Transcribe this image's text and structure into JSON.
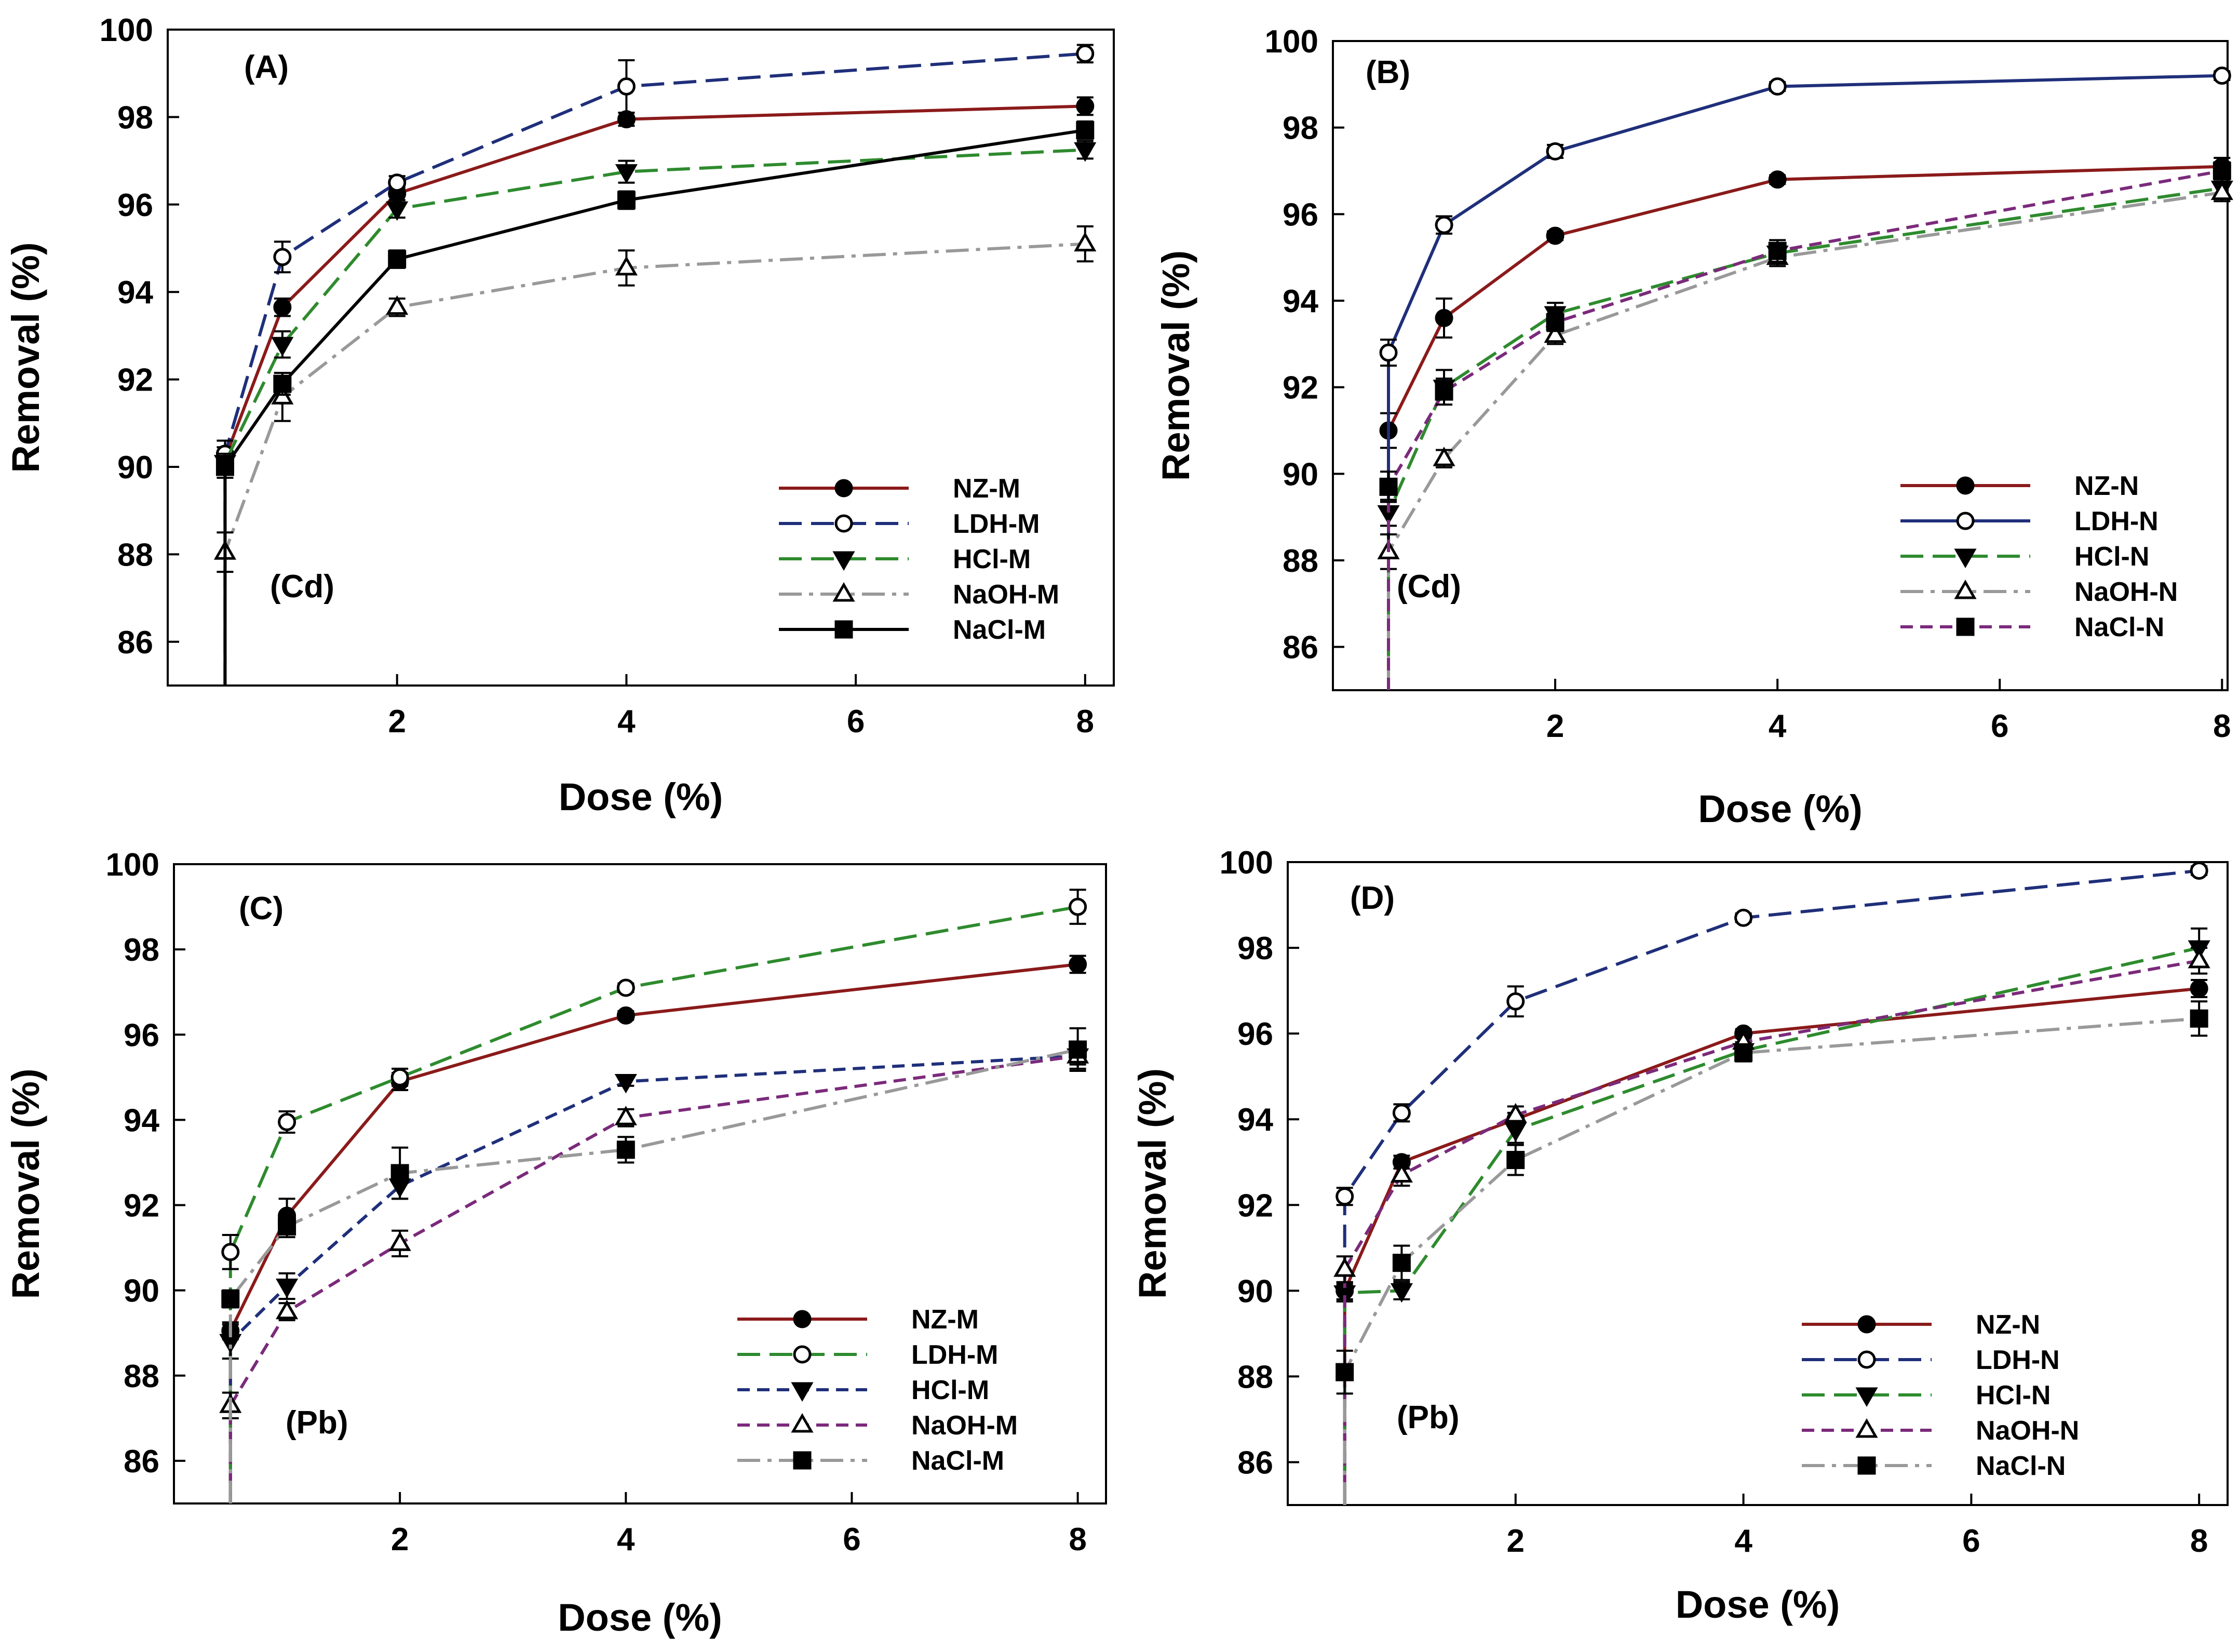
{
  "chart_data": [
    {
      "type": "line",
      "panel_label": "(A)",
      "metal_label": "(Cd)",
      "xlabel": "Dose (%)",
      "ylabel": "Removal (%)",
      "xlim": [
        0,
        8.25
      ],
      "ylim": [
        85,
        100
      ],
      "xticks": [
        2,
        4,
        6,
        8
      ],
      "yticks": [
        86,
        88,
        90,
        92,
        94,
        96,
        98,
        100
      ],
      "x": [
        0.5,
        1,
        2,
        4,
        8
      ],
      "legend_position": "bottom-right",
      "series": [
        {
          "name": "NZ-M",
          "marker": "circle-filled",
          "color": "#8b1a1a",
          "dash": "solid",
          "values": [
            90.2,
            93.65,
            96.25,
            97.95,
            98.25
          ],
          "errors": [
            0.25,
            0.2,
            0.15,
            0.15,
            0.2
          ]
        },
        {
          "name": "LDH-M",
          "marker": "circle-open",
          "color": "#1f2f7a",
          "dash": "long",
          "values": [
            90.3,
            94.8,
            96.5,
            98.7,
            99.45
          ],
          "errors": [
            0.3,
            0.35,
            0.15,
            0.6,
            0.2
          ]
        },
        {
          "name": "HCl-M",
          "marker": "triangle-down-filled",
          "color": "#2e8b2e",
          "dash": "long",
          "values": [
            90.1,
            92.8,
            95.9,
            96.75,
            97.25
          ],
          "errors": [
            0.2,
            0.3,
            0.2,
            0.25,
            0.2
          ]
        },
        {
          "name": "NaOH-M",
          "marker": "triangle-up-open",
          "color": "#999999",
          "dash": "dashdot",
          "values": [
            88.05,
            91.6,
            93.65,
            94.55,
            95.1
          ],
          "errors": [
            0.45,
            0.55,
            0.2,
            0.4,
            0.4
          ]
        },
        {
          "name": "NaCl-M",
          "marker": "square-filled",
          "color": "#000000",
          "dash": "solid",
          "values": [
            90.0,
            91.9,
            94.75,
            96.1,
            97.7
          ],
          "errors": [
            0.25,
            0.25,
            0.2,
            0.2,
            0.2
          ]
        }
      ]
    },
    {
      "type": "line",
      "panel_label": "(B)",
      "metal_label": "(Cd)",
      "xlabel": "Dose (%)",
      "ylabel": "Removal (%)",
      "xlim": [
        0,
        8.05
      ],
      "ylim": [
        85,
        100
      ],
      "xticks": [
        2,
        4,
        6,
        8
      ],
      "yticks": [
        86,
        88,
        90,
        92,
        94,
        96,
        98,
        100
      ],
      "x": [
        0.5,
        1,
        2,
        4,
        8
      ],
      "legend_position": "bottom-right",
      "series": [
        {
          "name": "NZ-N",
          "marker": "circle-filled",
          "color": "#8b1a1a",
          "dash": "solid",
          "values": [
            91.0,
            93.6,
            95.5,
            96.8,
            97.1
          ],
          "errors": [
            0.4,
            0.45,
            0.1,
            0.1,
            0.2
          ]
        },
        {
          "name": "LDH-N",
          "marker": "circle-open",
          "color": "#1f2f7a",
          "dash": "solid",
          "values": [
            92.8,
            95.75,
            97.45,
            98.95,
            99.2
          ],
          "errors": [
            0.3,
            0.2,
            0.15,
            0.1,
            0.1
          ]
        },
        {
          "name": "HCl-N",
          "marker": "triangle-down-filled",
          "color": "#2e8b2e",
          "dash": "long",
          "values": [
            89.1,
            92.0,
            93.7,
            95.1,
            96.6
          ],
          "errors": [
            0.3,
            0.4,
            0.25,
            0.2,
            0.25
          ]
        },
        {
          "name": "NaOH-N",
          "marker": "triangle-up-open",
          "color": "#999999",
          "dash": "dashdot",
          "values": [
            88.2,
            90.35,
            93.2,
            95.0,
            96.5
          ],
          "errors": [
            0.4,
            0.2,
            0.2,
            0.2,
            0.2
          ]
        },
        {
          "name": "NaCl-N",
          "marker": "square-filled",
          "color": "#7b2a7b",
          "dash": "short",
          "values": [
            89.7,
            91.9,
            93.5,
            95.15,
            97.0
          ],
          "errors": [
            0.35,
            0.3,
            0.2,
            0.25,
            0.2
          ]
        }
      ]
    },
    {
      "type": "line",
      "panel_label": "(C)",
      "metal_label": "(Pb)",
      "xlabel": "Dose (%)",
      "ylabel": "Removal (%)",
      "xlim": [
        0,
        8.25
      ],
      "ylim": [
        85,
        100
      ],
      "xticks": [
        2,
        4,
        6,
        8
      ],
      "yticks": [
        86,
        88,
        90,
        92,
        94,
        96,
        98,
        100
      ],
      "x": [
        0.5,
        1,
        2,
        4,
        8
      ],
      "legend_position": "bottom-right",
      "series": [
        {
          "name": "NZ-M",
          "marker": "circle-filled",
          "color": "#8b1a1a",
          "dash": "solid",
          "values": [
            89.05,
            91.75,
            94.9,
            96.45,
            97.65
          ],
          "errors": [
            0.2,
            0.4,
            0.2,
            0.1,
            0.2
          ]
        },
        {
          "name": "LDH-M",
          "marker": "circle-open",
          "color": "#2e8b2e",
          "dash": "long",
          "values": [
            90.9,
            93.95,
            95.0,
            97.1,
            99.0
          ],
          "errors": [
            0.4,
            0.25,
            0.2,
            0.1,
            0.4
          ]
        },
        {
          "name": "HCl-M",
          "marker": "triangle-down-filled",
          "color": "#1f2f7a",
          "dash": "short",
          "values": [
            88.8,
            90.1,
            92.45,
            94.9,
            95.5
          ],
          "errors": [
            0.4,
            0.3,
            0.3,
            0.1,
            0.2
          ]
        },
        {
          "name": "NaOH-M",
          "marker": "triangle-up-open",
          "color": "#7b2a7b",
          "dash": "short",
          "values": [
            87.3,
            89.5,
            91.1,
            94.05,
            95.5
          ],
          "errors": [
            0.3,
            0.2,
            0.3,
            0.2,
            0.3
          ]
        },
        {
          "name": "NaCl-M",
          "marker": "square-filled",
          "color": "#999999",
          "dash": "dashdot",
          "values": [
            89.8,
            91.5,
            92.75,
            93.3,
            95.65
          ],
          "errors": [
            0.2,
            0.25,
            0.6,
            0.3,
            0.5
          ]
        }
      ]
    },
    {
      "type": "line",
      "panel_label": "(D)",
      "metal_label": "(Pb)",
      "xlabel": "Dose (%)",
      "ylabel": "Removal (%)",
      "xlim": [
        0,
        8.25
      ],
      "ylim": [
        85,
        100
      ],
      "xticks": [
        2,
        4,
        6,
        8
      ],
      "yticks": [
        86,
        88,
        90,
        92,
        94,
        96,
        98,
        100
      ],
      "x": [
        0.5,
        1,
        2,
        4,
        8
      ],
      "legend_position": "bottom-right",
      "series": [
        {
          "name": "NZ-N",
          "marker": "circle-filled",
          "color": "#8b1a1a",
          "dash": "solid",
          "values": [
            90.0,
            93.0,
            94.0,
            96.0,
            97.05
          ],
          "errors": [
            0.2,
            0.15,
            0.15,
            0.1,
            0.2
          ]
        },
        {
          "name": "LDH-N",
          "marker": "circle-open",
          "color": "#1f2f7a",
          "dash": "long",
          "values": [
            92.2,
            94.15,
            96.75,
            98.7,
            99.8
          ],
          "errors": [
            0.2,
            0.2,
            0.35,
            0.1,
            0.1
          ]
        },
        {
          "name": "HCl-N",
          "marker": "triangle-down-filled",
          "color": "#2e8b2e",
          "dash": "long",
          "values": [
            89.95,
            90.0,
            93.75,
            95.6,
            98.0
          ],
          "errors": [
            0.2,
            0.2,
            0.3,
            0.2,
            0.45
          ]
        },
        {
          "name": "NaOH-N",
          "marker": "triangle-up-open",
          "color": "#7b2a7b",
          "dash": "short",
          "values": [
            90.5,
            92.7,
            94.1,
            95.8,
            97.7
          ],
          "errors": [
            0.3,
            0.25,
            0.2,
            0.2,
            0.3
          ]
        },
        {
          "name": "NaCl-N",
          "marker": "square-filled",
          "color": "#999999",
          "dash": "dashdot",
          "values": [
            88.1,
            90.65,
            93.05,
            95.55,
            96.35
          ],
          "errors": [
            0.5,
            0.4,
            0.35,
            0.2,
            0.4
          ]
        }
      ]
    }
  ]
}
